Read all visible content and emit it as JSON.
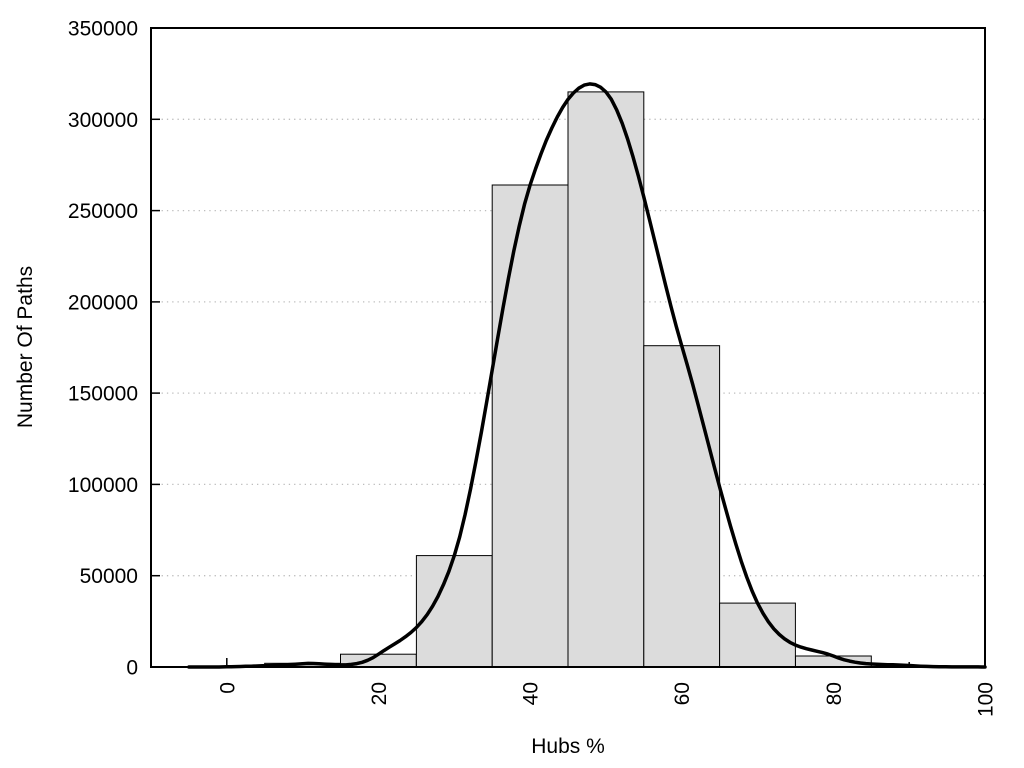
{
  "window": {
    "background": "#ffffff"
  },
  "chart_data": {
    "type": "bar",
    "subtype": "histogram-with-fit-curve",
    "title": "",
    "xlabel": "Hubs %",
    "ylabel": "Number Of Paths",
    "xlim": [
      -10,
      100
    ],
    "ylim": [
      0,
      350000
    ],
    "x_major_ticks": [
      0,
      20,
      40,
      60,
      80,
      100
    ],
    "x_minor_ticks": [
      10,
      30,
      50,
      70,
      90
    ],
    "y_ticks": [
      0,
      50000,
      100000,
      150000,
      200000,
      250000,
      300000,
      350000
    ],
    "grid": {
      "horizontal": true,
      "vertical": false,
      "style": "dotted"
    },
    "legend": "none",
    "bin_width": 10,
    "bars": [
      {
        "from": 5,
        "to": 15,
        "value": 2000
      },
      {
        "from": 15,
        "to": 25,
        "value": 7000
      },
      {
        "from": 25,
        "to": 35,
        "value": 61000
      },
      {
        "from": 35,
        "to": 45,
        "value": 264000
      },
      {
        "from": 45,
        "to": 55,
        "value": 315000
      },
      {
        "from": 55,
        "to": 65,
        "value": 176000
      },
      {
        "from": 65,
        "to": 75,
        "value": 35000
      },
      {
        "from": 75,
        "to": 85,
        "value": 6000
      }
    ],
    "curve": {
      "name": "fit-curve",
      "x": [
        -5,
        0,
        10,
        20,
        30,
        40,
        50,
        60,
        70,
        80,
        90,
        100
      ],
      "y": [
        0,
        100,
        1800,
        7000,
        61000,
        264000,
        315000,
        176000,
        35000,
        6000,
        800,
        0
      ]
    },
    "colors": {
      "bar_fill": "#dcdcdc",
      "bar_border": "#000000",
      "curve": "#000000",
      "grid": "#bdbdbd",
      "axis": "#000000",
      "text": "#000000"
    }
  }
}
